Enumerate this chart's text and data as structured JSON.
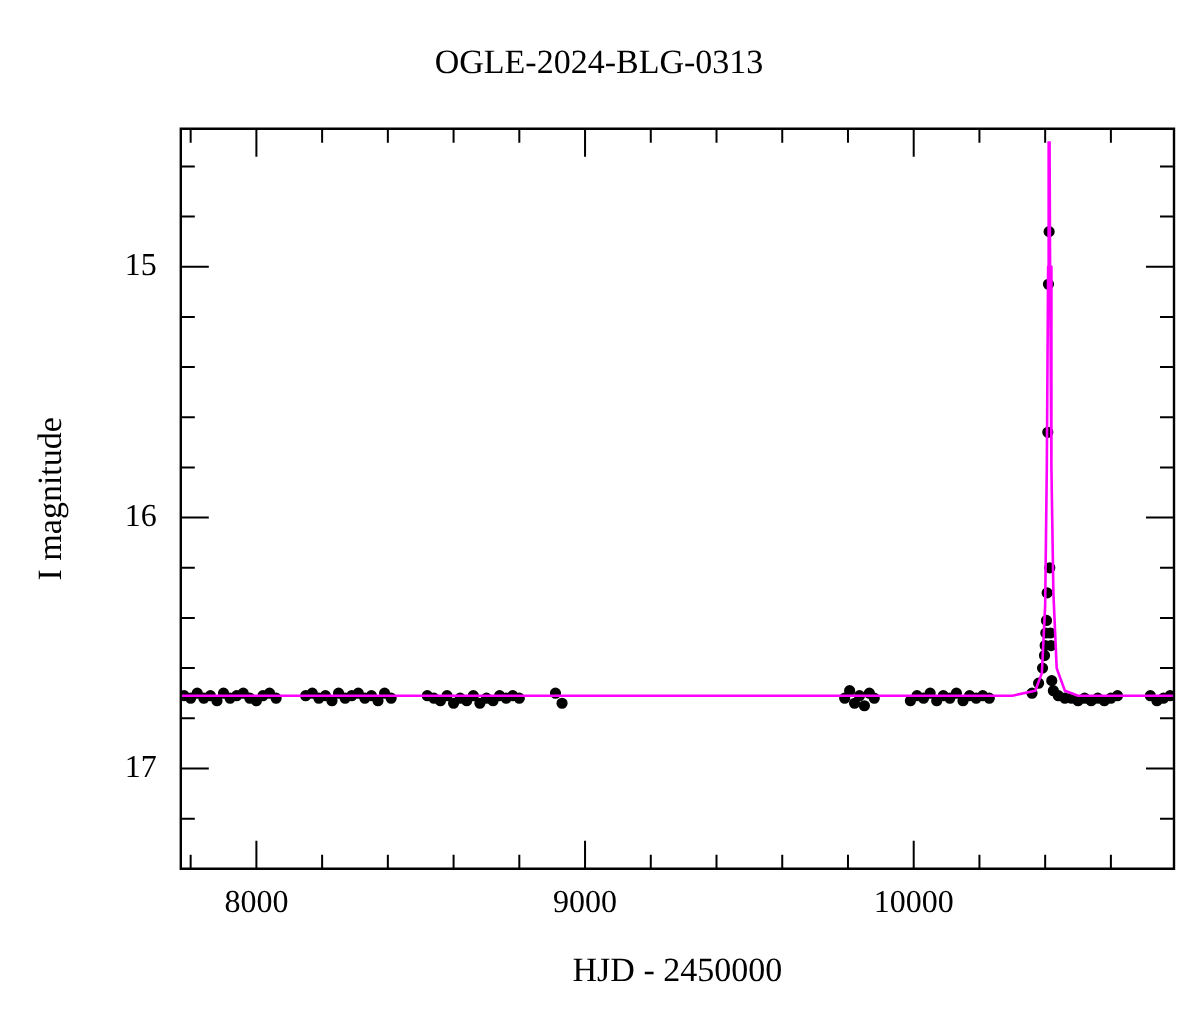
{
  "chart_data": {
    "type": "scatter",
    "title": "OGLE-2024-BLG-0313",
    "xlabel": "HJD - 2450000",
    "ylabel": "I magnitude",
    "xlim": [
      7770,
      10792
    ],
    "ylim": [
      17.4,
      14.45
    ],
    "xticks": [
      {
        "value": 7800,
        "label": null
      },
      8000,
      {
        "value": 8200,
        "label": null
      },
      {
        "value": 8400,
        "label": null
      },
      {
        "value": 8600,
        "label": null
      },
      {
        "value": 8800,
        "label": null
      },
      9000,
      {
        "value": 9200,
        "label": null
      },
      {
        "value": 9400,
        "label": null
      },
      {
        "value": 9600,
        "label": null
      },
      {
        "value": 9800,
        "label": null
      },
      10000,
      {
        "value": 10200,
        "label": null
      },
      {
        "value": 10400,
        "label": null
      },
      {
        "value": 10600,
        "label": null
      }
    ],
    "yticks": [
      {
        "value": 14.6,
        "label": null
      },
      {
        "value": 14.8,
        "label": null
      },
      15,
      {
        "value": 15.2,
        "label": null
      },
      {
        "value": 15.4,
        "label": null
      },
      {
        "value": 15.6,
        "label": null
      },
      {
        "value": 15.8,
        "label": null
      },
      16,
      {
        "value": 16.2,
        "label": null
      },
      {
        "value": 16.4,
        "label": null
      },
      {
        "value": 16.6,
        "label": null
      },
      {
        "value": 16.8,
        "label": null
      },
      17,
      {
        "value": 17.2,
        "label": null
      }
    ],
    "grid": false,
    "legend": false,
    "series": [
      {
        "marker": "circle",
        "color": "#000000",
        "x": [
          7780,
          7800,
          7820,
          7840,
          7860,
          7880,
          7900,
          7920,
          7940,
          7960,
          7980,
          8000,
          8020,
          8040,
          8060,
          8150,
          8170,
          8190,
          8210,
          8230,
          8250,
          8270,
          8290,
          8310,
          8330,
          8350,
          8370,
          8390,
          8410,
          8520,
          8540,
          8560,
          8580,
          8600,
          8620,
          8640,
          8660,
          8680,
          8700,
          8720,
          8740,
          8760,
          8780,
          8800,
          8910,
          8930,
          9790,
          9805,
          9820,
          9835,
          9850,
          9865,
          9880,
          9990,
          10010,
          10030,
          10050,
          10070,
          10090,
          10110,
          10130,
          10150,
          10170,
          10190,
          10210,
          10230,
          10360,
          10380,
          10392,
          10398,
          10400,
          10402,
          10404,
          10406,
          10408,
          10410,
          10412,
          10414,
          10416,
          10418,
          10420,
          10425,
          10440,
          10460,
          10480,
          10500,
          10520,
          10540,
          10560,
          10580,
          10600,
          10620,
          10720,
          10740,
          10760,
          10780
        ],
        "values": [
          16.71,
          16.72,
          16.7,
          16.72,
          16.71,
          16.73,
          16.7,
          16.72,
          16.71,
          16.7,
          16.72,
          16.73,
          16.71,
          16.7,
          16.72,
          16.71,
          16.7,
          16.72,
          16.71,
          16.73,
          16.7,
          16.72,
          16.71,
          16.7,
          16.72,
          16.71,
          16.73,
          16.7,
          16.72,
          16.71,
          16.72,
          16.73,
          16.71,
          16.74,
          16.72,
          16.73,
          16.71,
          16.74,
          16.72,
          16.73,
          16.71,
          16.72,
          16.71,
          16.72,
          16.7,
          16.74,
          16.72,
          16.69,
          16.74,
          16.71,
          16.75,
          16.7,
          16.72,
          16.73,
          16.71,
          16.72,
          16.7,
          16.73,
          16.71,
          16.72,
          16.7,
          16.73,
          16.71,
          16.72,
          16.71,
          16.72,
          16.7,
          16.66,
          16.6,
          16.55,
          16.51,
          16.46,
          16.41,
          16.3,
          15.66,
          15.07,
          14.86,
          16.2,
          16.46,
          16.51,
          16.65,
          16.69,
          16.71,
          16.72,
          16.72,
          16.73,
          16.72,
          16.73,
          16.72,
          16.73,
          16.72,
          16.71,
          16.71,
          16.73,
          16.72,
          16.71
        ]
      },
      {
        "type": "line",
        "color": "#ff00ff",
        "x": [
          7770,
          10300,
          10370,
          10390,
          10400,
          10405,
          10409,
          10410.6,
          10412,
          10413.4,
          10415,
          10419,
          10425,
          10435,
          10460,
          10500,
          10792
        ],
        "values": [
          16.71,
          16.71,
          16.69,
          16.62,
          16.35,
          15.8,
          15.0,
          14.5,
          null,
          14.5,
          15.0,
          15.8,
          16.3,
          16.6,
          16.69,
          16.71,
          16.71
        ]
      }
    ]
  }
}
